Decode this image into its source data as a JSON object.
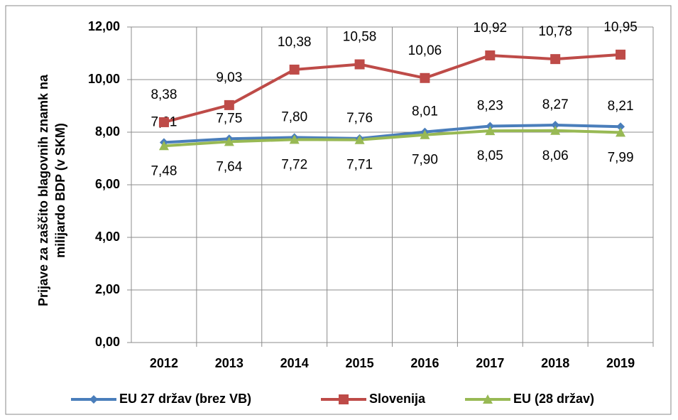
{
  "chart_data": {
    "type": "line",
    "ylabel": [
      "Prijave za zaščito blagovnih  znamk na",
      "milijardo BDP (v SKM)"
    ],
    "categories": [
      "2012",
      "2013",
      "2014",
      "2015",
      "2016",
      "2017",
      "2018",
      "2019"
    ],
    "series": [
      {
        "name": "EU 27 držav (brez VB)",
        "color": "#4a7ebb",
        "marker": "diamond",
        "values": [
          7.61,
          7.75,
          7.8,
          7.76,
          8.01,
          8.23,
          8.27,
          8.21
        ],
        "value_labels": [
          "7,61",
          "7,75",
          "7,80",
          "7,76",
          "8,01",
          "8,23",
          "8,27",
          "8,21"
        ]
      },
      {
        "name": "Slovenija",
        "color": "#be4b48",
        "marker": "square",
        "values": [
          8.38,
          9.03,
          10.38,
          10.58,
          10.06,
          10.92,
          10.78,
          10.95
        ],
        "value_labels": [
          "8,38",
          "9,03",
          "10,38",
          "10,58",
          "10,06",
          "10,92",
          "10,78",
          "10,95"
        ]
      },
      {
        "name": "EU (28 držav)",
        "color": "#98b954",
        "marker": "triangle",
        "values": [
          7.48,
          7.64,
          7.72,
          7.71,
          7.9,
          8.05,
          8.06,
          7.99
        ],
        "value_labels": [
          "7,48",
          "7,64",
          "7,72",
          "7,71",
          "7,90",
          "8,05",
          "8,06",
          "7,99"
        ]
      }
    ],
    "ylim": [
      0,
      12
    ],
    "yticks": [
      {
        "value": 0,
        "label": "0,00"
      },
      {
        "value": 2,
        "label": "2,00"
      },
      {
        "value": 4,
        "label": "4,00"
      },
      {
        "value": 6,
        "label": "6,00"
      },
      {
        "value": 8,
        "label": "8,00"
      },
      {
        "value": 10,
        "label": "10,00"
      },
      {
        "value": 12,
        "label": "12,00"
      }
    ],
    "grid": true,
    "legend": "bottom"
  }
}
